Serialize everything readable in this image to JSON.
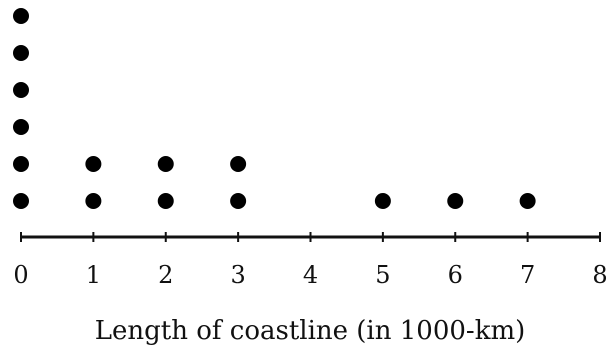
{
  "chart_data": {
    "type": "dot",
    "xlabel": "Length of coastline (in 1000-km)",
    "xlim": [
      0,
      8
    ],
    "ticks": [
      0,
      1,
      2,
      3,
      4,
      5,
      6,
      7,
      8
    ],
    "tick_labels": [
      "0",
      "1",
      "2",
      "3",
      "4",
      "5",
      "6",
      "7",
      "8"
    ],
    "points": [
      {
        "x": 0,
        "count": 6
      },
      {
        "x": 1,
        "count": 2
      },
      {
        "x": 2,
        "count": 2
      },
      {
        "x": 3,
        "count": 2
      },
      {
        "x": 5,
        "count": 1
      },
      {
        "x": 6,
        "count": 1
      },
      {
        "x": 7,
        "count": 1
      }
    ],
    "colors": {
      "dot": "#000000",
      "axis": "#111111"
    },
    "grid": false
  }
}
